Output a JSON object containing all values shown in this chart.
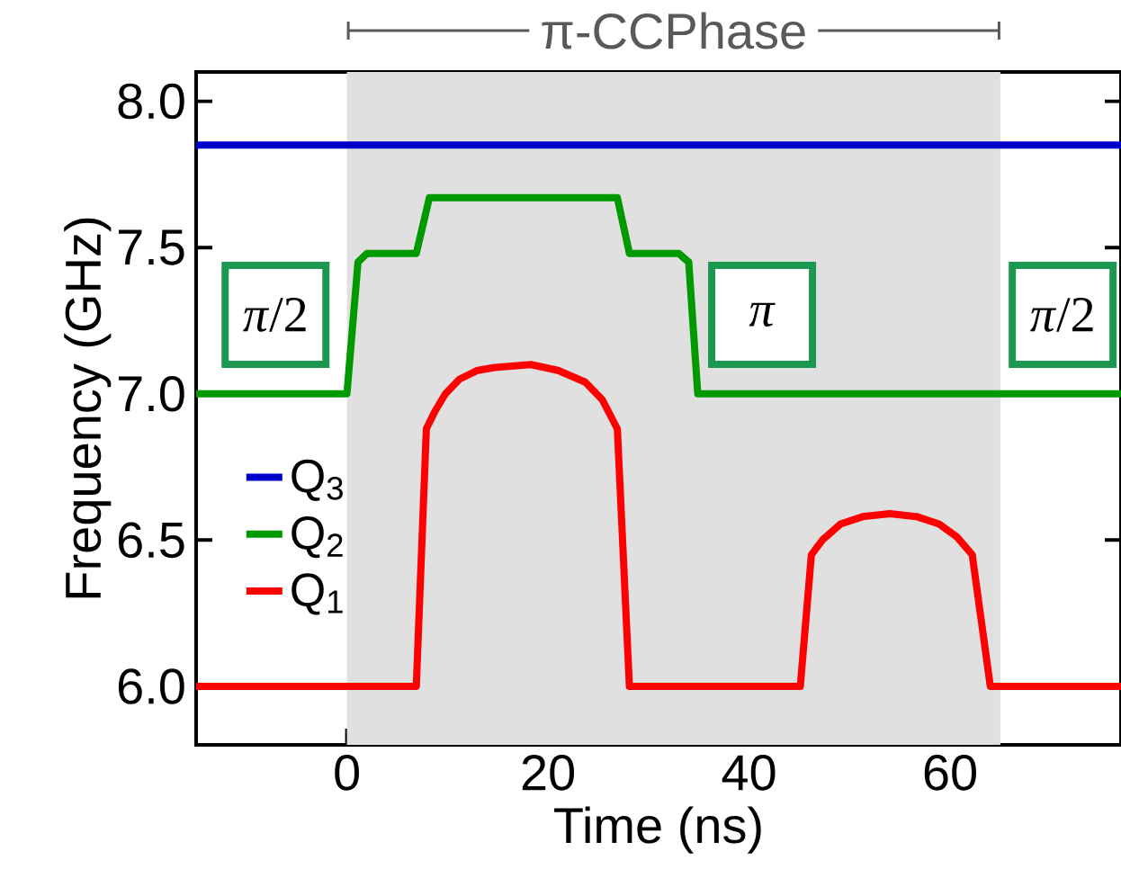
{
  "chart_data": {
    "type": "line",
    "xlabel": "Time (ns)",
    "ylabel": "Frequency (GHz)",
    "xlim": [
      -15,
      77
    ],
    "ylim": [
      5.8,
      8.1
    ],
    "xticks": [
      0,
      20,
      40,
      60
    ],
    "yticks": [
      {
        "value": 6,
        "label": "6.0"
      },
      {
        "value": 6.5,
        "label": "6.5"
      },
      {
        "value": 7,
        "label": "7.0"
      },
      {
        "value": 7.5,
        "label": "7.5"
      },
      {
        "value": 8,
        "label": "8.0"
      }
    ],
    "series": [
      {
        "name": "Q$_{3}$",
        "color": "#0000cc",
        "x": [
          -15,
          77
        ],
        "values": [
          7.85,
          7.85
        ]
      },
      {
        "name": "Q$_{2}$",
        "color": "#009900",
        "x": [
          -15,
          0,
          1.1,
          2,
          6.9,
          8.2,
          26.9,
          28.1,
          33,
          34,
          34.9,
          77
        ],
        "values": [
          7.0,
          7.0,
          7.45,
          7.48,
          7.48,
          7.67,
          7.67,
          7.48,
          7.48,
          7.45,
          7.0,
          7.0
        ]
      },
      {
        "name": "Q$_{1}$",
        "color": "#ff0000",
        "x": [
          -15,
          6.9,
          7.9,
          8.75,
          9.8,
          11.2,
          13,
          14.7,
          18.3,
          21,
          23.7,
          25.4,
          26.9,
          28.1,
          45.1,
          46.2,
          47.3,
          49.1,
          51.3,
          54,
          56.7,
          58.9,
          60.7,
          62.2,
          64,
          77
        ],
        "values": [
          6.0,
          6.0,
          6.88,
          6.94,
          7.0,
          7.05,
          7.08,
          7.09,
          7.1,
          7.08,
          7.04,
          6.98,
          6.88,
          6.0,
          6.0,
          6.45,
          6.5,
          6.555,
          6.58,
          6.59,
          6.58,
          6.555,
          6.51,
          6.45,
          6.0,
          6.0
        ]
      }
    ],
    "bands": [
      {
        "axis": "x",
        "from": 0,
        "to": 65,
        "label": "π-CCPhase",
        "color": "#e0e0e0"
      }
    ],
    "annotations": [
      "*π*/2",
      "*π*",
      "*π*/2"
    ],
    "legend": "left",
    "marker": "none",
    "line_style": "solid",
    "grid": false
  }
}
